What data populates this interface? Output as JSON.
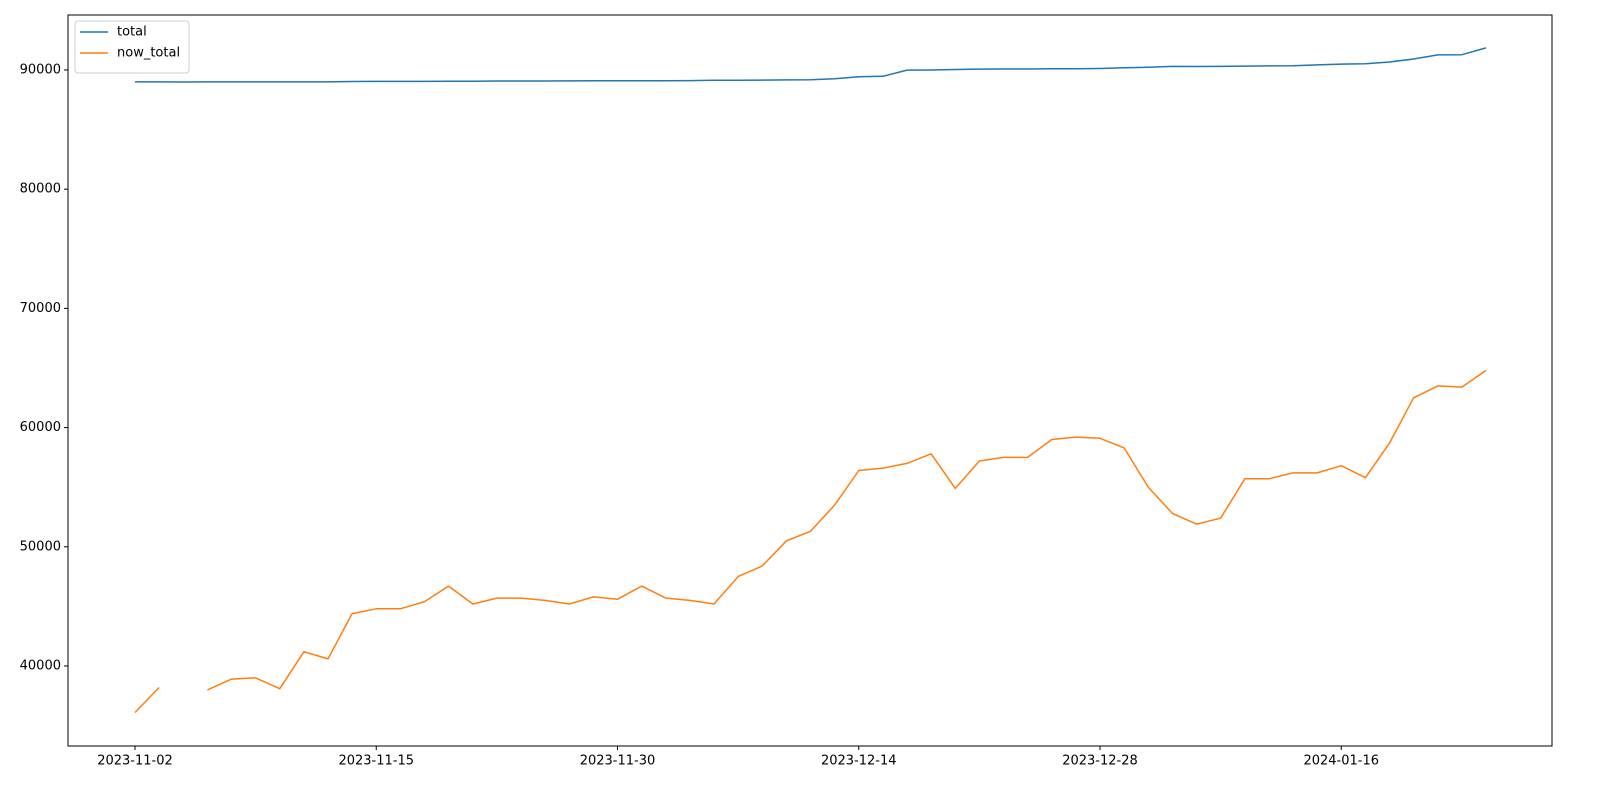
{
  "chart_data": {
    "type": "line",
    "categories": [
      "2023-11-02",
      null,
      null,
      null,
      null,
      null,
      null,
      null,
      null,
      null,
      "2023-11-15",
      null,
      null,
      null,
      null,
      null,
      null,
      null,
      null,
      null,
      "2023-11-30",
      null,
      null,
      null,
      null,
      null,
      null,
      null,
      null,
      null,
      "2023-12-14",
      null,
      null,
      null,
      null,
      null,
      null,
      null,
      null,
      null,
      "2023-12-28",
      null,
      null,
      null,
      null,
      null,
      null,
      null,
      null,
      null,
      "2024-01-16",
      null,
      null,
      null,
      null,
      null,
      null
    ],
    "series": [
      {
        "name": "total",
        "color": "#1f77b4",
        "values": [
          89000,
          89000,
          88990,
          89000,
          89000,
          89000,
          89000,
          89000,
          89000,
          89030,
          89040,
          89040,
          89040,
          89050,
          89060,
          89070,
          89070,
          89070,
          89080,
          89090,
          89090,
          89100,
          89100,
          89110,
          89130,
          89140,
          89150,
          89170,
          89180,
          89260,
          89430,
          89470,
          89990,
          90000,
          90040,
          90070,
          90080,
          90080,
          90100,
          90100,
          90120,
          90180,
          90220,
          90300,
          90290,
          90300,
          90320,
          90340,
          90360,
          90420,
          90490,
          90520,
          90670,
          90920,
          91260,
          91280,
          91850
        ]
      },
      {
        "name": "now_total",
        "color": "#ff7f0e",
        "values": [
          36100,
          38200,
          null,
          38000,
          38900,
          39000,
          38100,
          41200,
          40600,
          44400,
          44800,
          44800,
          45400,
          46700,
          45200,
          45700,
          45700,
          45500,
          45200,
          45800,
          45600,
          46700,
          45700,
          45500,
          45200,
          47500,
          48400,
          50500,
          51300,
          53500,
          56400,
          56600,
          57000,
          57800,
          54900,
          57200,
          57500,
          57500,
          59000,
          59200,
          59100,
          58300,
          55000,
          52800,
          51900,
          52400,
          55700,
          55700,
          56200,
          56200,
          56800,
          55800,
          58700,
          62500,
          63500,
          63400,
          64800
        ]
      }
    ],
    "ylim": [
      33290,
      94610
    ],
    "yticks": [
      40000,
      50000,
      60000,
      70000,
      80000,
      90000
    ],
    "legend": "upper left",
    "grid": false
  }
}
